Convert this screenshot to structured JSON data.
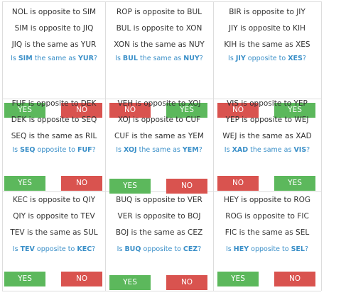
{
  "cards": [
    {
      "lines": [
        "NOL is opposite to SIM",
        "SIM is opposite to JIQ",
        "JIQ is the same as YUR"
      ],
      "question": [
        "Is ",
        "SIM",
        " the same as ",
        "YUR",
        "?"
      ],
      "buttons": [
        {
          "label": "YES",
          "color": "#5cb85c"
        },
        {
          "label": "NO",
          "color": "#d9534f"
        }
      ]
    },
    {
      "lines": [
        "ROP is opposite to BUL",
        "BUL is opposite to XON",
        "XON is the same as NUY"
      ],
      "question": [
        "Is ",
        "BUL",
        " the same as ",
        "NUY",
        "?"
      ],
      "buttons": [
        {
          "label": "NO",
          "color": "#d9534f"
        },
        {
          "label": "YES",
          "color": "#5cb85c"
        }
      ]
    },
    {
      "lines": [
        "BIR is opposite to JIY",
        "JIY is opposite to KIH",
        "KIH is the same as XES"
      ],
      "question": [
        "Is ",
        "JIY",
        " opposite to ",
        "XES",
        "?"
      ],
      "buttons": [
        {
          "label": "NO",
          "color": "#d9534f"
        },
        {
          "label": "YES",
          "color": "#5cb85c"
        }
      ]
    },
    {
      "lines": [
        "FUF is opposite to DEK",
        "DEK is opposite to SEQ",
        "SEQ is the same as RIL"
      ],
      "question": [
        "Is ",
        "SEQ",
        " opposite to ",
        "FUF",
        "?"
      ],
      "buttons": [
        {
          "label": "YES",
          "color": "#5cb85c"
        },
        {
          "label": "NO",
          "color": "#d9534f"
        }
      ]
    },
    {
      "lines": [
        "VEH is opposite to XOJ",
        "XOJ is opposite to CUF",
        "CUF is the same as YEM"
      ],
      "question": [
        "Is ",
        "XOJ",
        " the same as ",
        "YEM",
        "?"
      ],
      "buttons": [
        {
          "label": "YES",
          "color": "#5cb85c"
        },
        {
          "label": "NO",
          "color": "#d9534f"
        }
      ]
    },
    {
      "lines": [
        "VIS is opposite to YEP",
        "YEP is opposite to WEJ",
        "WEJ is the same as XAD"
      ],
      "question": [
        "Is ",
        "XAD",
        " the same as ",
        "VIS",
        "?"
      ],
      "buttons": [
        {
          "label": "NO",
          "color": "#d9534f"
        },
        {
          "label": "YES",
          "color": "#5cb85c"
        }
      ]
    },
    {
      "lines": [
        "KEC is opposite to QIY",
        "QIY is opposite to TEV",
        "TEV is the same as SUL"
      ],
      "question": [
        "Is ",
        "TEV",
        " opposite to ",
        "KEC",
        "?"
      ],
      "buttons": [
        {
          "label": "YES",
          "color": "#5cb85c"
        },
        {
          "label": "NO",
          "color": "#d9534f"
        }
      ]
    },
    {
      "lines": [
        "BUQ is opposite to VER",
        "VER is opposite to BOJ",
        "BOJ is the same as CEZ"
      ],
      "question": [
        "Is ",
        "BUQ",
        " opposite to ",
        "CEZ",
        "?"
      ],
      "buttons": [
        {
          "label": "YES",
          "color": "#5cb85c"
        },
        {
          "label": "NO",
          "color": "#d9534f"
        }
      ]
    },
    {
      "lines": [
        "HEY is opposite to ROG",
        "ROG is opposite to FIC",
        "FIC is the same as SEL"
      ],
      "question": [
        "Is ",
        "HEY",
        " opposite to ",
        "SEL",
        "?"
      ],
      "buttons": [
        {
          "label": "YES",
          "color": "#5cb85c"
        },
        {
          "label": "NO",
          "color": "#d9534f"
        }
      ]
    }
  ]
}
